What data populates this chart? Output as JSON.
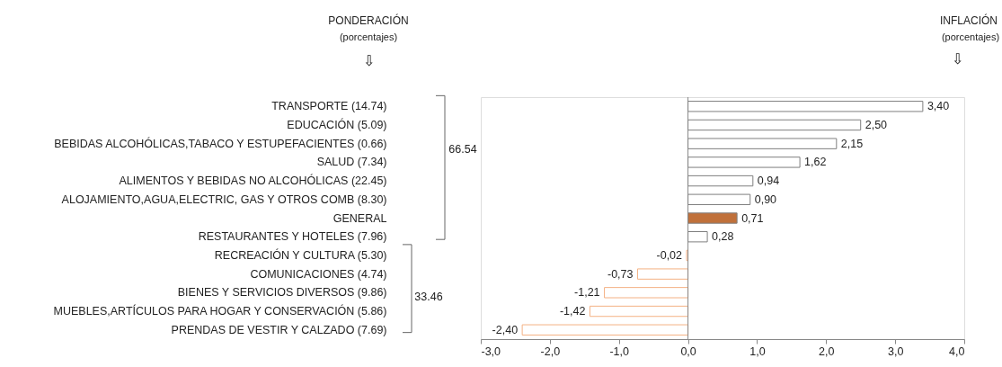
{
  "chart_data": {
    "type": "bar",
    "orientation": "horizontal",
    "categories": [
      "TRANSPORTE (14.74)",
      "EDUCACIÓN (5.09)",
      "BEBIDAS ALCOHÓLICAS,TABACO Y ESTUPEFACIENTES (0.66)",
      "SALUD (7.34)",
      "ALIMENTOS Y BEBIDAS NO ALCOHÓLICAS (22.45)",
      "ALOJAMIENTO,AGUA,ELECTRIC, GAS Y OTROS COMB (8.30)",
      "GENERAL",
      "RESTAURANTES Y HOTELES (7.96)",
      "RECREACIÓN Y CULTURA (5.30)",
      "COMUNICACIONES (4.74)",
      "BIENES Y SERVICIOS DIVERSOS (9.86)",
      "MUEBLES,ARTÍCULOS PARA HOGAR Y CONSERVACIÓN (5.86)",
      "PRENDAS DE VESTIR Y CALZADO (7.69)"
    ],
    "values": [
      3.4,
      2.5,
      2.15,
      1.62,
      0.94,
      0.9,
      0.71,
      0.28,
      -0.02,
      -0.73,
      -1.21,
      -1.42,
      -2.4
    ],
    "value_labels": [
      "3,40",
      "2,50",
      "2,15",
      "1,62",
      "0,94",
      "0,90",
      "0,71",
      "0,28",
      "-0,02",
      "-0,73",
      "-1,21",
      "-1,42",
      "-2,40"
    ],
    "colors": [
      "#ffffff",
      "#ffffff",
      "#ffffff",
      "#ffffff",
      "#ffffff",
      "#ffffff",
      "#c0703a",
      "#ffffff",
      "#ffffff",
      "#ffffff",
      "#ffffff",
      "#ffffff",
      "#ffffff"
    ],
    "xlim": [
      -3,
      4
    ],
    "xticks": [
      {
        "value": -3,
        "label": "-3,0"
      },
      {
        "value": -2,
        "label": "-2,0"
      },
      {
        "value": -1,
        "label": "-1,0"
      },
      {
        "value": 0,
        "label": "0,0"
      },
      {
        "value": 1,
        "label": "1,0"
      },
      {
        "value": 2,
        "label": "2,0"
      },
      {
        "value": 3,
        "label": "3,0"
      },
      {
        "value": 4,
        "label": "4,0"
      }
    ],
    "ref_lines": [
      {
        "axis": "x",
        "value": 0
      }
    ],
    "annotations": [
      "PONDERACIÓN",
      "(porcentajes)",
      "⇩",
      "INFLACIÓN",
      "(porcentajes)",
      "⇩",
      "66.54",
      "33.46"
    ],
    "grid": false
  }
}
